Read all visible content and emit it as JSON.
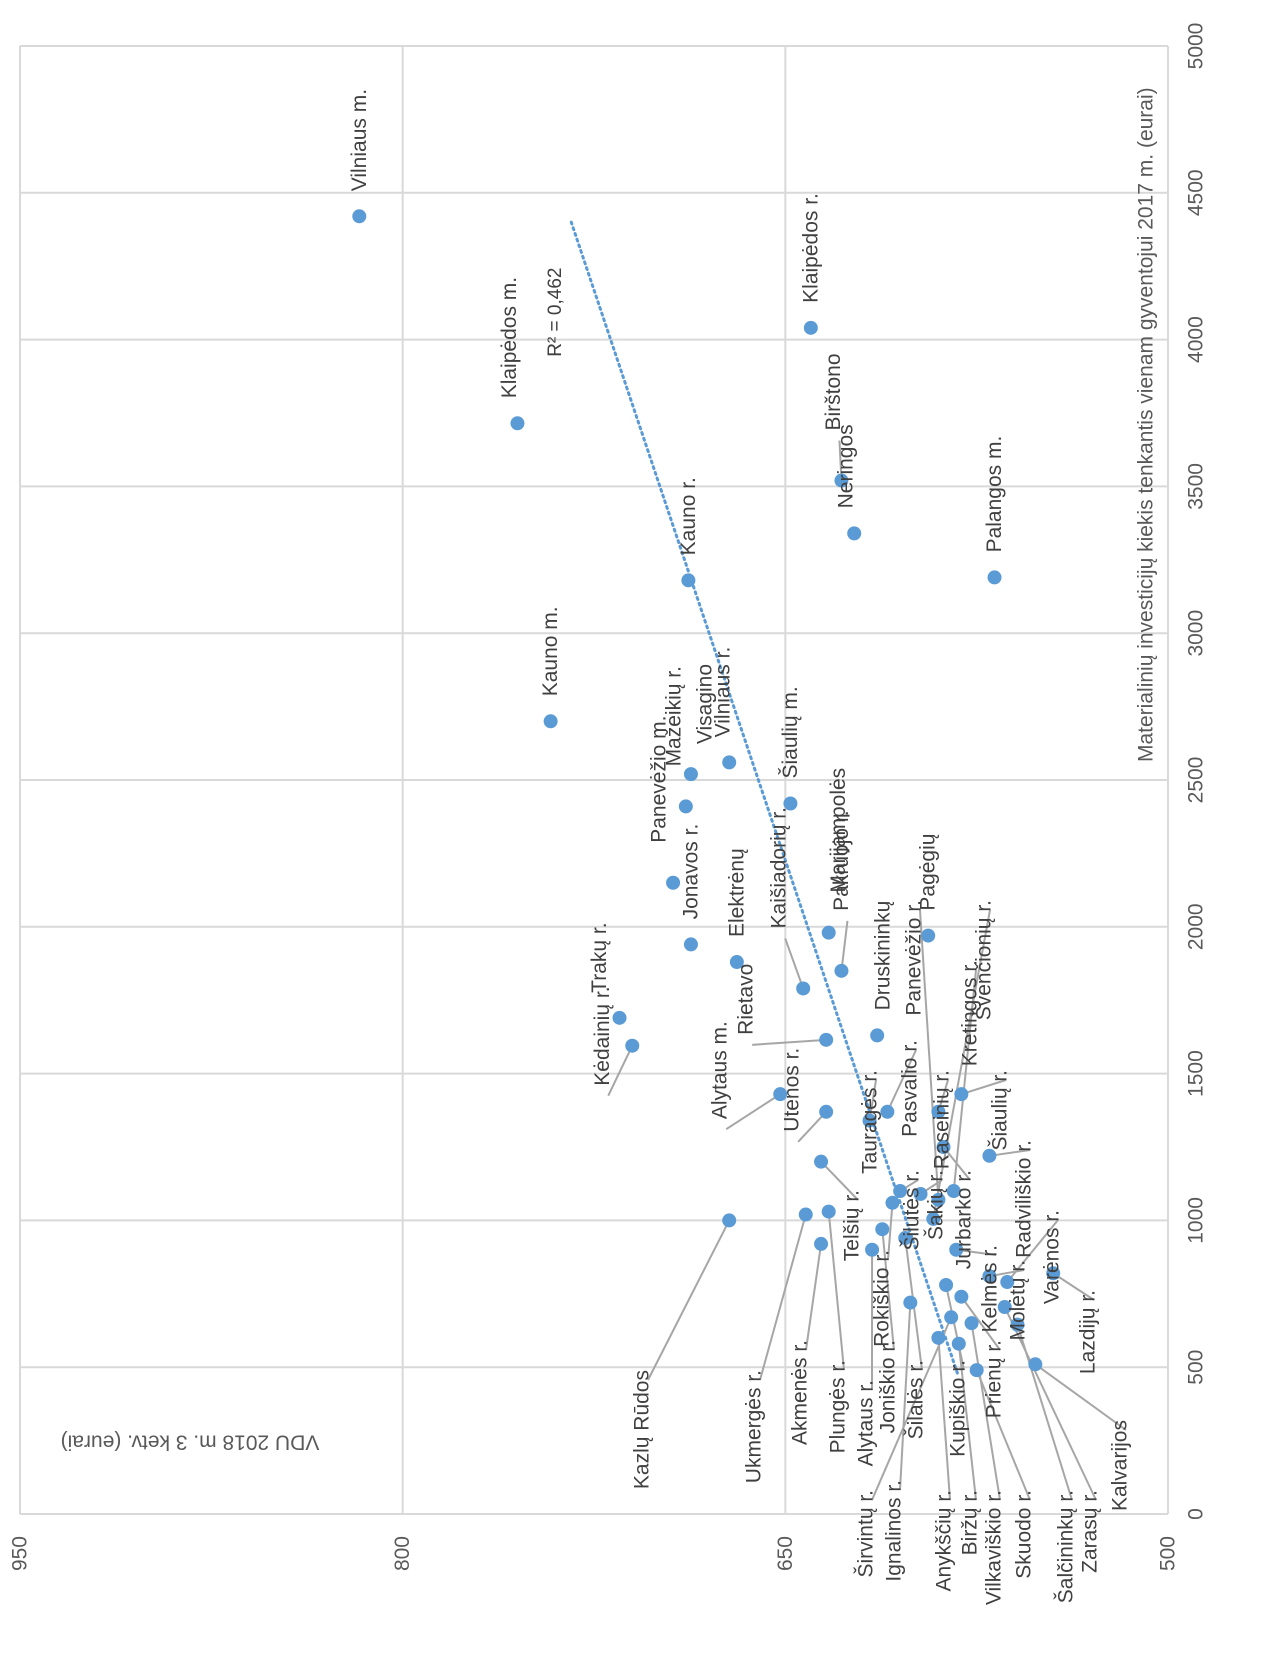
{
  "chart_data": {
    "type": "scatter",
    "xlabel": "Materialinių investicijų kiekis tenkantis vienam gyventojui 2017 m. (eurai)",
    "ylabel": "VDU 2018 m. 3 ketv. (eurai)",
    "xlim": [
      0,
      5000
    ],
    "ylim": [
      500,
      950
    ],
    "x_ticks": [
      0,
      500,
      1000,
      1500,
      2000,
      2500,
      3000,
      3500,
      4000,
      4500,
      5000
    ],
    "y_ticks": [
      500,
      650,
      800,
      950
    ],
    "grid": true,
    "marker_color": "#5b9bd5",
    "trendline": {
      "type": "linear",
      "style": "dotted",
      "color": "#5b9bd5",
      "x_range": [
        480,
        4400
      ],
      "r2_label": "R² = 0,462"
    },
    "points": [
      {
        "label": "Vilniaus m.",
        "x": 4420,
        "y": 817
      },
      {
        "label": "Klaipėdos m.",
        "x": 3715,
        "y": 755
      },
      {
        "label": "Kauno m.",
        "x": 2700,
        "y": 742
      },
      {
        "label": "Klaipėdos r.",
        "x": 4040,
        "y": 640
      },
      {
        "label": "Birštono",
        "x": 3520,
        "y": 628
      },
      {
        "label": "Neringos",
        "x": 3340,
        "y": 623
      },
      {
        "label": "Palangos m.",
        "x": 3190,
        "y": 568
      },
      {
        "label": "Kauno r.",
        "x": 3180,
        "y": 688
      },
      {
        "label": "Mažeikių r.",
        "x": 2410,
        "y": 689
      },
      {
        "label": "Visagino",
        "x": 2520,
        "y": 687
      },
      {
        "label": "Vilniaus r.",
        "x": 2560,
        "y": 672
      },
      {
        "label": "Šiaulių m.",
        "x": 2420,
        "y": 648
      },
      {
        "label": "Panevėžio m.",
        "x": 2150,
        "y": 694
      },
      {
        "label": "Jonavos r.",
        "x": 1940,
        "y": 687
      },
      {
        "label": "Elektrėnų",
        "x": 1880,
        "y": 669
      },
      {
        "label": "Marijampolės",
        "x": 1980,
        "y": 633
      },
      {
        "label": "Pagėgių",
        "x": 1970,
        "y": 594
      },
      {
        "label": "Pakruojo r.",
        "x": 1850,
        "y": 628
      },
      {
        "label": "Kaišiadorių r.",
        "x": 1790,
        "y": 643
      },
      {
        "label": "Trakų r.",
        "x": 1690,
        "y": 715
      },
      {
        "label": "Kėdainių r.",
        "x": 1595,
        "y": 710
      },
      {
        "label": "Rietavo",
        "x": 1615,
        "y": 634
      },
      {
        "label": "Druskininkų",
        "x": 1630,
        "y": 614
      },
      {
        "label": "Alytaus m.",
        "x": 1430,
        "y": 652
      },
      {
        "label": "Utenos r.",
        "x": 1370,
        "y": 634
      },
      {
        "label": "Tauragės r.",
        "x": 1340,
        "y": 617
      },
      {
        "label": "Pasvalio r.",
        "x": 1370,
        "y": 610
      },
      {
        "label": "Raseinių r.",
        "x": 1370,
        "y": 590
      },
      {
        "label": "Šiaulių r.",
        "x": 1430,
        "y": 581
      },
      {
        "label": "Jurbarko r.",
        "x": 1250,
        "y": 588
      },
      {
        "label": "Radviliškio r.",
        "x": 1220,
        "y": 570
      },
      {
        "label": "Telšių r.",
        "x": 1200,
        "y": 636
      },
      {
        "label": "Šilutės r.",
        "x": 1100,
        "y": 605
      },
      {
        "label": "Šakių r.",
        "x": 1090,
        "y": 597
      },
      {
        "label": "Kretingos r.",
        "x": 1100,
        "y": 584
      },
      {
        "label": "Panevėžio r.",
        "x": 1070,
        "y": 590
      },
      {
        "label": "Švenčionių r.",
        "x": 1005,
        "y": 592
      },
      {
        "label": "Rokiškio r.",
        "x": 1060,
        "y": 608
      },
      {
        "label": "Plungės r.",
        "x": 1030,
        "y": 633
      },
      {
        "label": "Kazlų Rūdos",
        "x": 1000,
        "y": 672
      },
      {
        "label": "Ukmergės r.",
        "x": 1020,
        "y": 642
      },
      {
        "label": "Joniškio r.",
        "x": 970,
        "y": 612
      },
      {
        "label": "Šilalės r.",
        "x": 940,
        "y": 603
      },
      {
        "label": "Akmenės r.",
        "x": 920,
        "y": 636
      },
      {
        "label": "Alytaus r.",
        "x": 900,
        "y": 616
      },
      {
        "label": "Kelmės r.",
        "x": 900,
        "y": 583
      },
      {
        "label": "Molėtų r.",
        "x": 810,
        "y": 570
      },
      {
        "label": "Varėnos r.",
        "x": 790,
        "y": 563
      },
      {
        "label": "Lazdijų r.",
        "x": 820,
        "y": 545
      },
      {
        "label": "Kupiškio r.",
        "x": 780,
        "y": 587
      },
      {
        "label": "Prienų r.",
        "x": 740,
        "y": 581
      },
      {
        "label": "Ignalinos r.",
        "x": 720,
        "y": 601
      },
      {
        "label": "Širvintų r.",
        "x": 670,
        "y": 585
      },
      {
        "label": "Zarasų r.",
        "x": 705,
        "y": 564
      },
      {
        "label": "Vilkaviškio r.",
        "x": 650,
        "y": 577
      },
      {
        "label": "Šalčininkų r.",
        "x": 645,
        "y": 559
      },
      {
        "label": "Anykščių r.",
        "x": 600,
        "y": 590
      },
      {
        "label": "Biržų r.",
        "x": 580,
        "y": 582
      },
      {
        "label": "Kalvarijos",
        "x": 510,
        "y": 552
      },
      {
        "label": "Skuodo r.",
        "x": 490,
        "y": 575
      }
    ]
  }
}
